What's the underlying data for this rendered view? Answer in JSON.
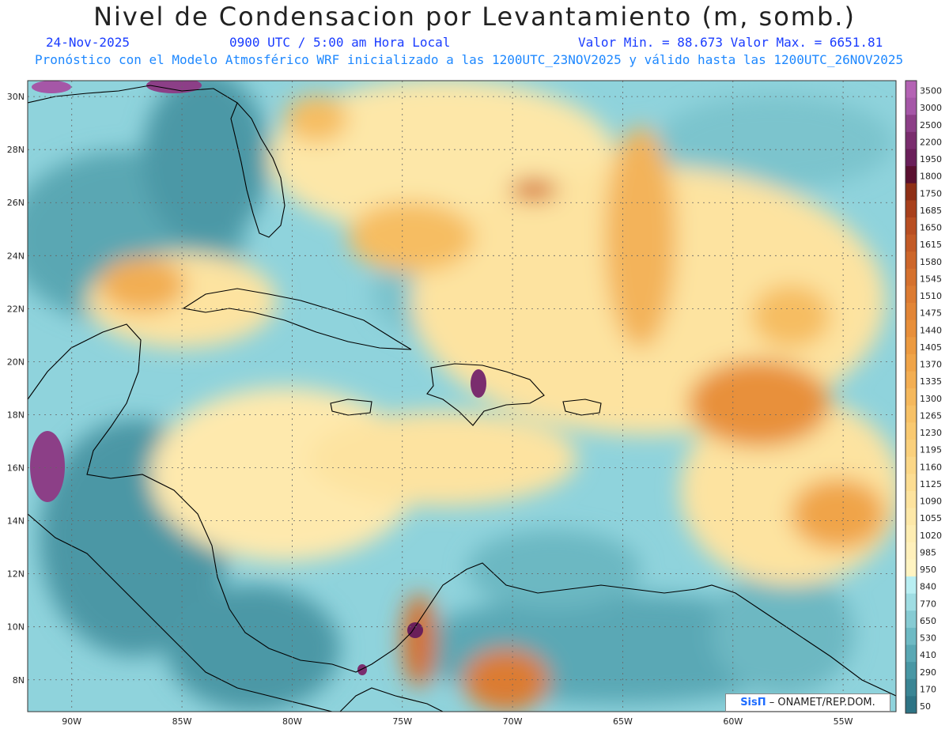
{
  "title": "Nivel de Condensacion por Levantamiento (m, somb.)",
  "date": "24-Nov-2025",
  "valid_time": "0900 UTC / 5:00 am Hora Local",
  "minmax": "Valor Min. = 88.673  Valor Max. = 6651.81",
  "forecast_info": "Pronóstico con el Modelo Atmosférico WRF inicializado a las 1200UTC_23NOV2025 y válido hasta las  1200UTC_26NOV2025",
  "credit_logo": "SisΠ",
  "credit_text": "– ONAMET/REP.DOM.",
  "map": {
    "lon_range": [
      -92.0,
      -52.6
    ],
    "lat_range": [
      6.8,
      30.6
    ],
    "lat_labels": [
      "30N",
      "28N",
      "26N",
      "24N",
      "22N",
      "20N",
      "18N",
      "16N",
      "14N",
      "12N",
      "10N",
      "8N"
    ],
    "lon_labels": [
      "90W",
      "85W",
      "80W",
      "75W",
      "70W",
      "65W",
      "60W",
      "55W"
    ]
  },
  "colorbar": {
    "levels": [
      "3500",
      "3000",
      "2500",
      "2200",
      "1950",
      "1800",
      "1750",
      "1685",
      "1650",
      "1615",
      "1580",
      "1545",
      "1510",
      "1475",
      "1440",
      "1405",
      "1370",
      "1335",
      "1300",
      "1265",
      "1230",
      "1195",
      "1160",
      "1125",
      "1090",
      "1055",
      "1020",
      "985",
      "950",
      "840",
      "770",
      "650",
      "530",
      "410",
      "290",
      "170",
      "50"
    ],
    "colors": [
      "#b463b4",
      "#a557a7",
      "#8c3f87",
      "#7a2d6e",
      "#6a1f5a",
      "#5a1030",
      "#8e2f16",
      "#a8401c",
      "#b84e22",
      "#c35a26",
      "#cd662a",
      "#d5712e",
      "#dc7b32",
      "#e28536",
      "#e88f3a",
      "#ec9a40",
      "#f0a448",
      "#f3ae52",
      "#f5b85c",
      "#f7c166",
      "#f9c970",
      "#fad07c",
      "#fbd787",
      "#fcdd92",
      "#fde39e",
      "#fde8a8",
      "#feedb2",
      "#fff0bb",
      "#fff4c2",
      "#b8eef2",
      "#9fdde3",
      "#86cbd3",
      "#6ebac4",
      "#59a8b4",
      "#4897a4",
      "#3a8594",
      "#2e7485"
    ]
  },
  "features": {
    "coastline_color": "#000000",
    "grid_color": "#666666"
  }
}
